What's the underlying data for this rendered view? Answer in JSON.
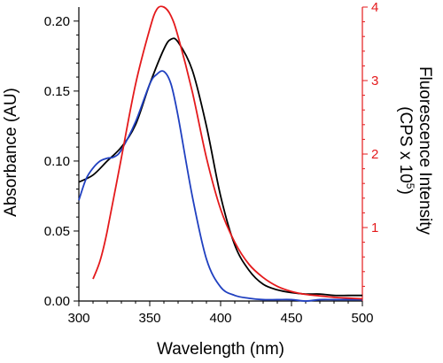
{
  "chart_data": {
    "type": "line",
    "xlabel": "Wavelength (nm)",
    "ylabel_left": "Absorbance (AU)",
    "ylabel_right_line1": "Fluorescence Intensity",
    "ylabel_right_line2_prefix": "(CPS x 10",
    "ylabel_right_line2_sup": "5",
    "ylabel_right_line2_suffix": ")",
    "xlim": [
      300,
      500
    ],
    "ylim_left": [
      0,
      0.21
    ],
    "ylim_right": [
      0,
      4
    ],
    "x_ticks": [
      300,
      350,
      400,
      450,
      500
    ],
    "x_tick_labels": [
      "300",
      "350",
      "400",
      "450",
      "500"
    ],
    "y_left_ticks": [
      0.0,
      0.05,
      0.1,
      0.15,
      0.2
    ],
    "y_left_tick_labels": [
      "0.00",
      "0.05",
      "0.10",
      "0.15",
      "0.20"
    ],
    "y_right_ticks": [
      1,
      2,
      3,
      4
    ],
    "y_right_tick_labels": [
      "1",
      "2",
      "3",
      "4"
    ],
    "right_axis_color": "#e41a1c",
    "series": [
      {
        "axis": "left",
        "color": "#000000",
        "x": [
          300,
          310,
          320,
          330,
          340,
          350,
          360,
          365,
          370,
          380,
          390,
          400,
          410,
          420,
          430,
          440,
          450,
          460,
          470,
          480,
          490,
          500
        ],
        "y": [
          0.085,
          0.09,
          0.1,
          0.11,
          0.126,
          0.155,
          0.18,
          0.187,
          0.185,
          0.165,
          0.125,
          0.075,
          0.04,
          0.022,
          0.012,
          0.008,
          0.006,
          0.005,
          0.005,
          0.004,
          0.004,
          0.004
        ]
      },
      {
        "axis": "left",
        "color": "#2040c0",
        "x": [
          300,
          305,
          310,
          315,
          320,
          325,
          330,
          340,
          350,
          355,
          360,
          365,
          370,
          380,
          390,
          400,
          410,
          420,
          430,
          440,
          450,
          460,
          470,
          480,
          490,
          500
        ],
        "y": [
          0.072,
          0.087,
          0.095,
          0.1,
          0.102,
          0.103,
          0.108,
          0.128,
          0.155,
          0.162,
          0.164,
          0.155,
          0.132,
          0.075,
          0.03,
          0.01,
          0.004,
          0.002,
          0.001,
          0.001,
          0.001,
          0.0,
          0.001,
          0.001,
          0.001,
          0.001
        ]
      },
      {
        "axis": "right",
        "color": "#e41a1c",
        "x": [
          310,
          315,
          320,
          330,
          340,
          350,
          355,
          360,
          365,
          370,
          380,
          390,
          400,
          410,
          420,
          430,
          440,
          450,
          460,
          470,
          480,
          490,
          500
        ],
        "y": [
          0.3,
          0.55,
          0.95,
          1.95,
          2.95,
          3.7,
          3.97,
          4.0,
          3.88,
          3.6,
          2.85,
          1.95,
          1.25,
          0.8,
          0.5,
          0.32,
          0.2,
          0.13,
          0.09,
          0.07,
          0.05,
          0.04,
          0.03
        ]
      }
    ]
  }
}
